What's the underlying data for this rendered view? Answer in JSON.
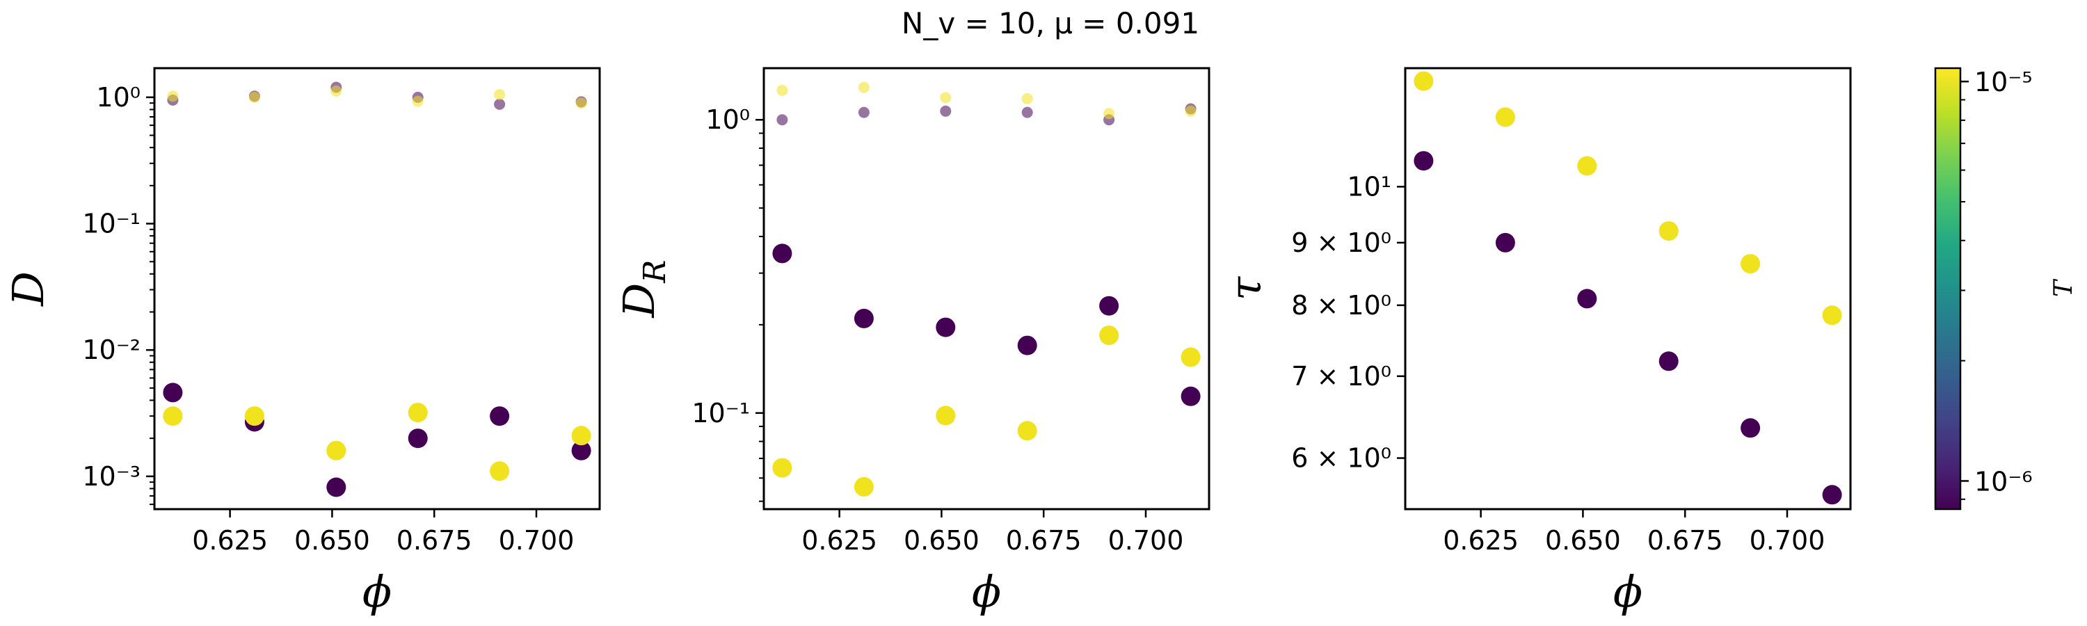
{
  "figure": {
    "title": "N_v = 10, μ = 0.091"
  },
  "colors": {
    "low_T": "#440154",
    "high_T": "#f0e21d"
  },
  "chart_data": [
    {
      "type": "scatter",
      "id": "D",
      "ylabel": "D",
      "xlabel": "ϕ",
      "yscale": "log",
      "xlim": [
        0.6065,
        0.7155
      ],
      "ylim": [
        0.00055,
        1.7
      ],
      "xticks": [
        0.625,
        0.65,
        0.675,
        0.7
      ],
      "xtick_labels": [
        "0.625",
        "0.650",
        "0.675",
        "0.700"
      ],
      "yticks": [
        0.001,
        0.01,
        0.1,
        1
      ],
      "ytick_labels": [
        "10⁻³",
        "10⁻²",
        "10⁻¹",
        "10⁰"
      ],
      "x": [
        0.611,
        0.631,
        0.651,
        0.671,
        0.691,
        0.711
      ],
      "series": [
        {
          "T": "1e-6",
          "color": "#440154",
          "size": "large",
          "values": [
            0.0046,
            0.0027,
            0.00082,
            0.002,
            0.003,
            0.0016
          ]
        },
        {
          "T": "1e-5",
          "color": "#f0e21d",
          "size": "large",
          "values": [
            0.003,
            0.003,
            0.0016,
            0.0032,
            0.0011,
            0.0021
          ]
        },
        {
          "T": "1e-6",
          "color": "#440154",
          "size": "small",
          "faded": true,
          "values": [
            0.95,
            1.02,
            1.2,
            1.0,
            0.88,
            0.92
          ]
        },
        {
          "T": "1e-5",
          "color": "#f0e21d",
          "size": "small",
          "faded": true,
          "values": [
            1.02,
            1.0,
            1.12,
            0.93,
            1.05,
            0.9
          ]
        }
      ]
    },
    {
      "type": "scatter",
      "id": "DR",
      "ylabel": "D_R",
      "xlabel": "ϕ",
      "yscale": "log",
      "xlim": [
        0.6065,
        0.7155
      ],
      "ylim": [
        0.047,
        1.5
      ],
      "xticks": [
        0.625,
        0.65,
        0.675,
        0.7
      ],
      "xtick_labels": [
        "0.625",
        "0.650",
        "0.675",
        "0.700"
      ],
      "yticks": [
        0.1,
        1
      ],
      "ytick_labels": [
        "10⁻¹",
        "10⁰"
      ],
      "x": [
        0.611,
        0.631,
        0.651,
        0.671,
        0.691,
        0.711
      ],
      "series": [
        {
          "T": "1e-6",
          "color": "#440154",
          "size": "large",
          "values": [
            0.35,
            0.21,
            0.196,
            0.17,
            0.232,
            0.114
          ]
        },
        {
          "T": "1e-5",
          "color": "#f0e21d",
          "size": "large",
          "values": [
            0.065,
            0.056,
            0.098,
            0.087,
            0.184,
            0.155
          ]
        },
        {
          "T": "1e-6",
          "color": "#440154",
          "size": "small",
          "faded": true,
          "values": [
            1.0,
            1.06,
            1.07,
            1.06,
            1.0,
            1.09
          ]
        },
        {
          "T": "1e-5",
          "color": "#f0e21d",
          "size": "small",
          "faded": true,
          "values": [
            1.26,
            1.29,
            1.19,
            1.18,
            1.05,
            1.07
          ]
        }
      ]
    },
    {
      "type": "scatter",
      "id": "tau",
      "ylabel": "τ",
      "xlabel": "ϕ",
      "yscale": "log",
      "xlim": [
        0.6065,
        0.7155
      ],
      "ylim": [
        5.45,
        12.5
      ],
      "xticks": [
        0.625,
        0.65,
        0.675,
        0.7
      ],
      "xtick_labels": [
        "0.625",
        "0.650",
        "0.675",
        "0.700"
      ],
      "yticks": [
        6,
        7,
        8,
        9,
        10
      ],
      "ytick_labels": [
        "6 × 10⁰",
        "7 × 10⁰",
        "8 × 10⁰",
        "9 × 10⁰",
        "10¹"
      ],
      "x": [
        0.611,
        0.631,
        0.651,
        0.671,
        0.691,
        0.711
      ],
      "series": [
        {
          "T": "1e-6",
          "color": "#440154",
          "size": "large",
          "values": [
            10.5,
            9.0,
            8.1,
            7.2,
            6.35,
            5.6
          ]
        },
        {
          "T": "1e-5",
          "color": "#f0e21d",
          "size": "large",
          "values": [
            12.2,
            11.4,
            10.4,
            9.2,
            8.65,
            7.85
          ]
        }
      ]
    }
  ],
  "colorbar": {
    "label": "T",
    "scale": "log",
    "range": [
      8.5e-07,
      1.08e-05
    ],
    "ticks": [
      1e-06,
      1e-05
    ],
    "tick_labels": [
      "10⁻⁶",
      "10⁻⁵"
    ],
    "colormap": "viridis"
  }
}
